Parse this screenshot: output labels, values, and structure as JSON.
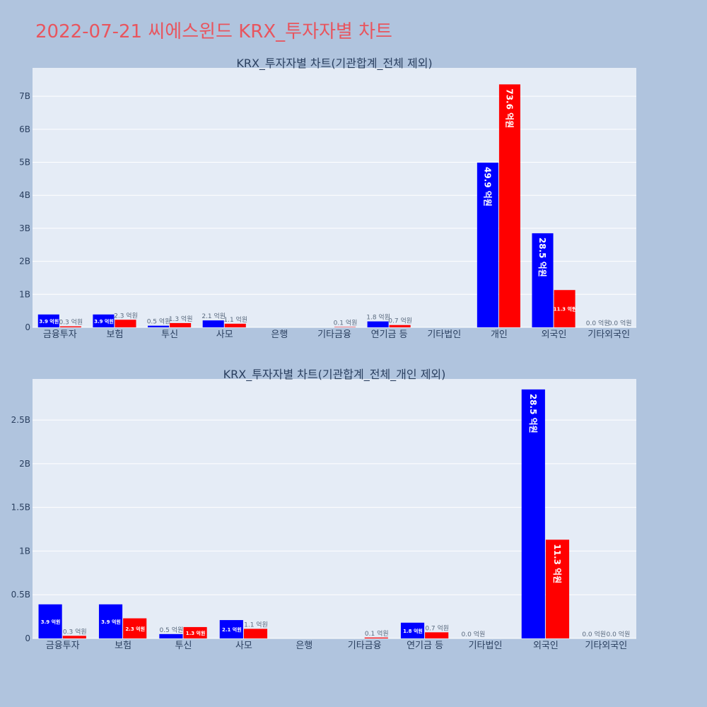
{
  "page_title": "2022-07-21 씨에스윈드 KRX_투자자별 차트",
  "colors": {
    "series_a": "#0000ff",
    "series_b": "#ff0000",
    "plot_bg": "#e5ecf6",
    "paper_bg": "#b0c4de",
    "title": "#e8555e"
  },
  "chart_data": [
    {
      "type": "bar",
      "title": "KRX_투자자별 차트(기관합계_전체 제외)",
      "categories": [
        "금융투자",
        "보험",
        "투신",
        "사모",
        "은행",
        "기타금융",
        "연기금 등",
        "기타법인",
        "개인",
        "외국인",
        "기타외국인"
      ],
      "series": [
        {
          "values": [
            0.39,
            0.39,
            0.05,
            0.21,
            0,
            0,
            0.18,
            0,
            4.99,
            2.85,
            0
          ],
          "labels": [
            "3.9 억원",
            "3.9 억원",
            "0.5 억원",
            "2.1 억원",
            "",
            "",
            "1.8 억원",
            "",
            "49.9 억원",
            "28.5 억원",
            "0.0 억원"
          ]
        },
        {
          "values": [
            0.03,
            0.23,
            0.13,
            0.11,
            0,
            0.01,
            0.07,
            0,
            7.36,
            1.13,
            0
          ],
          "labels": [
            "0.3 억원",
            "2.3 억원",
            "1.3 억원",
            "1.1 억원",
            "",
            "0.1 억원",
            "0.7 억원",
            "",
            "73.6 억원",
            "11.3 억원",
            "0.0 억원"
          ]
        }
      ],
      "ylim": [
        0,
        7.86
      ],
      "yticks": [
        0,
        1,
        2,
        3,
        4,
        5,
        6,
        7
      ],
      "ytick_labels": [
        "0",
        "1B",
        "2B",
        "3B",
        "4B",
        "5B",
        "6B",
        "7B"
      ],
      "grid": true
    },
    {
      "type": "bar",
      "title": "KRX_투자자별 차트(기관합계_전체_개인 제외)",
      "categories": [
        "금융투자",
        "보험",
        "투신",
        "사모",
        "은행",
        "기타금융",
        "연기금 등",
        "기타법인",
        "외국인",
        "기타외국인"
      ],
      "series": [
        {
          "values": [
            0.39,
            0.39,
            0.05,
            0.21,
            0,
            0,
            0.18,
            0,
            2.85,
            0
          ],
          "labels": [
            "3.9 억원",
            "3.9 억원",
            "0.5 억원",
            "2.1 억원",
            "",
            "",
            "1.8 억원",
            "0.0 억원",
            "28.5 억원",
            "0.0 억원"
          ]
        },
        {
          "values": [
            0.03,
            0.23,
            0.13,
            0.11,
            0,
            0.01,
            0.07,
            0,
            1.13,
            0
          ],
          "labels": [
            "0.3 억원",
            "2.3 억원",
            "1.3 억원",
            "1.1 억원",
            "",
            "0.1 억원",
            "0.7 억원",
            "",
            "11.3 억원",
            "0.0 억원"
          ]
        }
      ],
      "ylim": [
        0,
        2.97
      ],
      "yticks": [
        0,
        0.5,
        1,
        1.5,
        2,
        2.5
      ],
      "ytick_labels": [
        "0",
        "0.5B",
        "1B",
        "1.5B",
        "2B",
        "2.5B"
      ],
      "grid": true
    }
  ]
}
